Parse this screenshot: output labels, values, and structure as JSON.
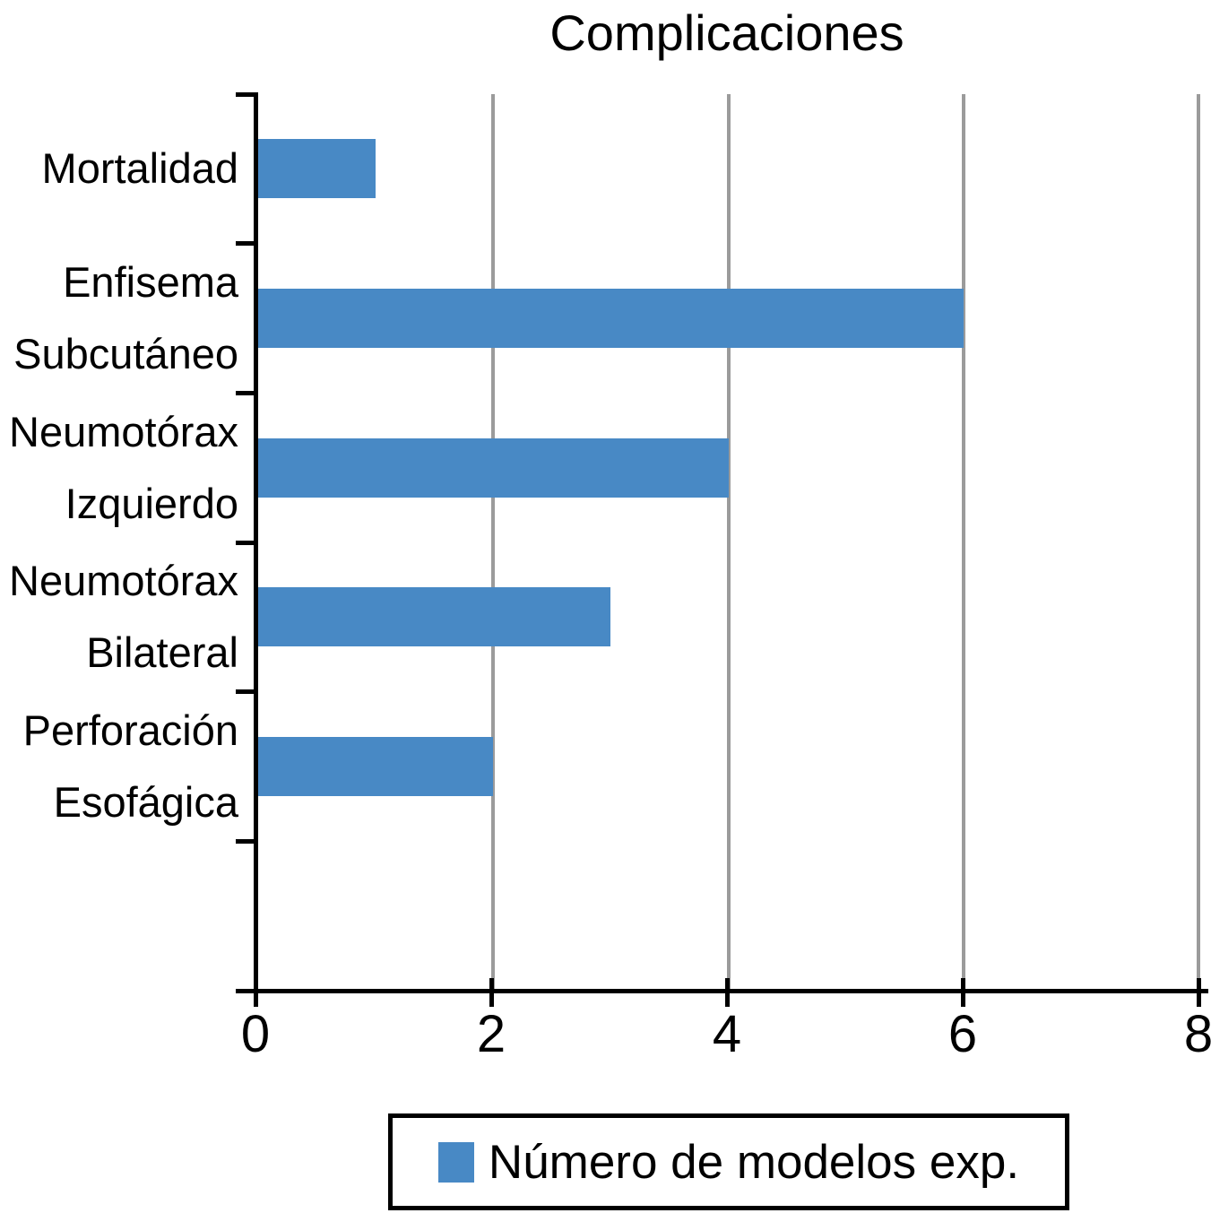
{
  "chart_data": {
    "type": "bar",
    "orientation": "horizontal",
    "title": "Complicaciones",
    "categories": [
      "Mortalidad",
      "Enfisema Subcutáneo",
      "Neumotórax Izquierdo",
      "Neumotórax Bilateral",
      "Perforación Esofágica"
    ],
    "category_label_lines": [
      [
        "Mortalidad"
      ],
      [
        "Enfisema",
        "Subcutáneo"
      ],
      [
        "Neumotórax",
        "Izquierdo"
      ],
      [
        "Neumotórax",
        "Bilateral"
      ],
      [
        "Perforación",
        "Esofágica"
      ]
    ],
    "series": [
      {
        "name": "Número de modelos exp.",
        "values": [
          1,
          6,
          4,
          3,
          2
        ]
      }
    ],
    "xlabel": "",
    "ylabel": "",
    "xlim": [
      0,
      8
    ],
    "x_ticks": [
      0,
      2,
      4,
      6,
      8
    ],
    "x_tick_labels": [
      "0",
      "2",
      "4",
      "6",
      "8"
    ],
    "rows_total": 6,
    "grid": "vertical gridlines at x ticks",
    "legend_position": "bottom",
    "colors": {
      "bar": "#4889C5",
      "gridline": "#9B9B9B",
      "axis": "#000000",
      "background": "#FFFFFF"
    }
  },
  "legend": {
    "label": "Número de modelos exp.",
    "swatch_color": "#4889C5"
  }
}
